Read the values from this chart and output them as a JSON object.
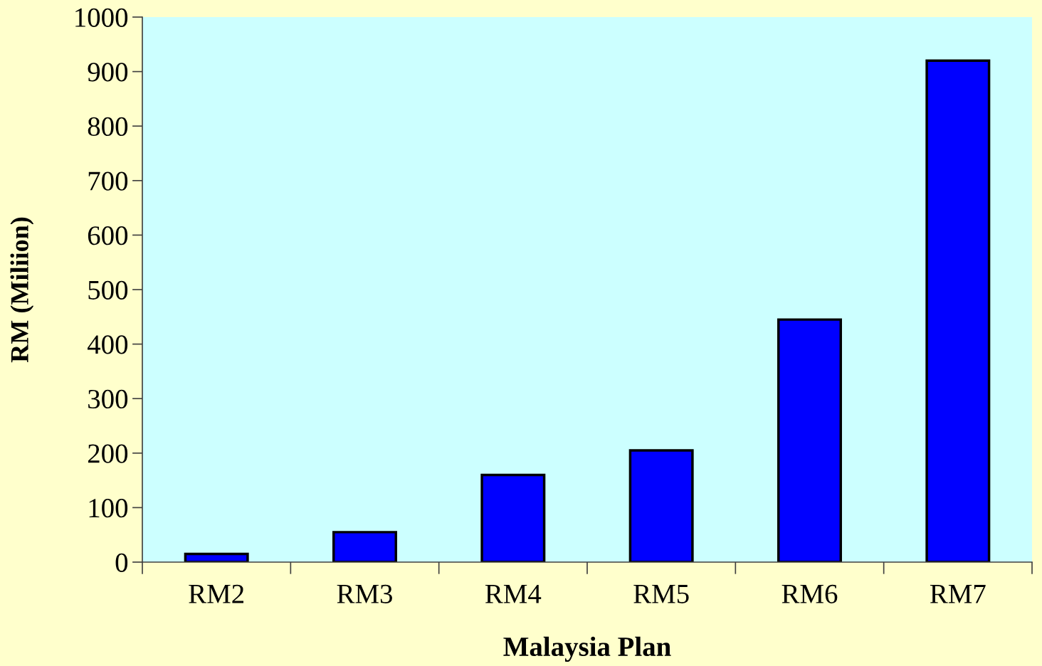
{
  "chart_data": {
    "type": "bar",
    "xlabel": "Malaysia Plan",
    "ylabel": "RM (Miliion)",
    "categories": [
      "RM2",
      "RM3",
      "RM4",
      "RM5",
      "RM6",
      "RM7"
    ],
    "values": [
      15,
      55,
      160,
      205,
      445,
      920
    ],
    "color": "#0000ff",
    "ylim": [
      0,
      1000
    ],
    "yticks": [
      0,
      100,
      200,
      300,
      400,
      500,
      600,
      700,
      800,
      900,
      1000
    ],
    "grid": false
  }
}
